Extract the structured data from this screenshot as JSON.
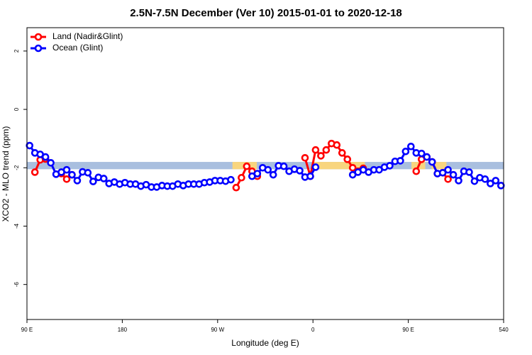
{
  "chart_data": {
    "type": "line",
    "title": "2.5N-7.5N December (Ver 10)   2015-01-01 to 2020-12-18",
    "xlabel": "Longitude (deg E)",
    "ylabel": "XCO2 - MLO trend (ppm)",
    "xlim": [
      90,
      540
    ],
    "ylim": [
      -7.2,
      2.8
    ],
    "xticks": [
      {
        "value": 90,
        "label": "90 E"
      },
      180,
      {
        "value": 270,
        "label": "90 W"
      },
      {
        "value": 360,
        "label": "0"
      },
      {
        "value": 450,
        "label": "90 E"
      },
      540
    ],
    "yticks": [
      2,
      0,
      -2,
      -4,
      -6
    ],
    "legend": "top-left",
    "band": {
      "range": [
        -2.05,
        -1.8
      ],
      "color": "#a9bfdf"
    },
    "highlight_regions": {
      "color": "#f8d57e",
      "ranges": [
        [
          284,
          307
        ],
        [
          360,
          409
        ],
        [
          453,
          466
        ],
        [
          472,
          486
        ]
      ]
    },
    "x": [
      92.5,
      97.5,
      102.5,
      107.5,
      112.5,
      117.5,
      122.5,
      127.5,
      132.5,
      137.5,
      142.5,
      147.5,
      152.5,
      157.5,
      162.5,
      167.5,
      172.5,
      177.5,
      182.5,
      187.5,
      192.5,
      197.5,
      202.5,
      207.5,
      212.5,
      217.5,
      222.5,
      227.5,
      232.5,
      237.5,
      242.5,
      247.5,
      252.5,
      257.5,
      262.5,
      267.5,
      272.5,
      277.5,
      282.5,
      287.5,
      292.5,
      297.5,
      302.5,
      307.5,
      312.5,
      317.5,
      322.5,
      327.5,
      332.5,
      337.5,
      342.5,
      347.5,
      352.5,
      357.5,
      362.5,
      367.5,
      372.5,
      377.5,
      382.5,
      387.5,
      392.5,
      397.5,
      402.5,
      407.5,
      412.5,
      417.5,
      422.5,
      427.5,
      432.5,
      437.5,
      442.5,
      447.5,
      452.5,
      457.5,
      462.5,
      467.5,
      472.5,
      477.5,
      482.5,
      487.5,
      492.5,
      497.5,
      502.5,
      507.5,
      512.5,
      517.5,
      522.5,
      527.5,
      532.5,
      537.5
    ],
    "series": [
      {
        "name": "Land (Nadir&Glint)",
        "color": "#ff0000",
        "values": [
          null,
          -2.15,
          -1.73,
          -1.7,
          null,
          null,
          -2.2,
          -2.39,
          -2.24,
          null,
          null,
          null,
          null,
          null,
          null,
          null,
          null,
          null,
          null,
          null,
          null,
          null,
          null,
          null,
          null,
          null,
          null,
          null,
          null,
          null,
          null,
          null,
          null,
          null,
          null,
          null,
          null,
          null,
          null,
          -2.68,
          -2.34,
          -1.95,
          -2.12,
          -2.29,
          null,
          null,
          null,
          null,
          null,
          null,
          null,
          null,
          -1.66,
          -2.29,
          -1.39,
          -1.59,
          -1.39,
          -1.17,
          -1.22,
          -1.49,
          -1.71,
          -2.0,
          -2.12,
          -2.02,
          null,
          null,
          null,
          null,
          null,
          null,
          null,
          null,
          null,
          -2.12,
          -1.71,
          -1.63,
          -1.8,
          -2.2,
          -2.17,
          -2.39,
          null,
          null,
          null,
          null,
          null,
          null,
          null,
          null,
          null,
          null
        ]
      },
      {
        "name": "Ocean (Glint)",
        "color": "#0000ff",
        "values": [
          -1.24,
          -1.49,
          -1.54,
          -1.63,
          -1.83,
          -2.22,
          -2.15,
          -2.07,
          -2.24,
          -2.44,
          -2.14,
          -2.17,
          -2.47,
          -2.33,
          -2.37,
          -2.54,
          -2.49,
          -2.56,
          -2.51,
          -2.56,
          -2.56,
          -2.63,
          -2.58,
          -2.66,
          -2.66,
          -2.61,
          -2.63,
          -2.63,
          -2.56,
          -2.61,
          -2.56,
          -2.56,
          -2.56,
          -2.51,
          -2.49,
          -2.44,
          -2.44,
          -2.46,
          -2.41,
          null,
          null,
          null,
          -2.29,
          -2.2,
          -2.0,
          -2.07,
          -2.24,
          -1.93,
          -1.95,
          -2.12,
          -2.05,
          -2.1,
          -2.32,
          -2.29,
          -1.98,
          null,
          null,
          null,
          null,
          null,
          null,
          -2.24,
          -2.15,
          -2.07,
          -2.15,
          -2.07,
          -2.07,
          -1.98,
          -1.93,
          -1.78,
          -1.76,
          -1.44,
          -1.27,
          -1.49,
          -1.51,
          -1.63,
          -1.8,
          -2.2,
          -2.17,
          -2.07,
          -2.24,
          -2.44,
          -2.12,
          -2.15,
          -2.46,
          -2.34,
          -2.39,
          -2.54,
          -2.44,
          -2.61
        ]
      }
    ]
  }
}
